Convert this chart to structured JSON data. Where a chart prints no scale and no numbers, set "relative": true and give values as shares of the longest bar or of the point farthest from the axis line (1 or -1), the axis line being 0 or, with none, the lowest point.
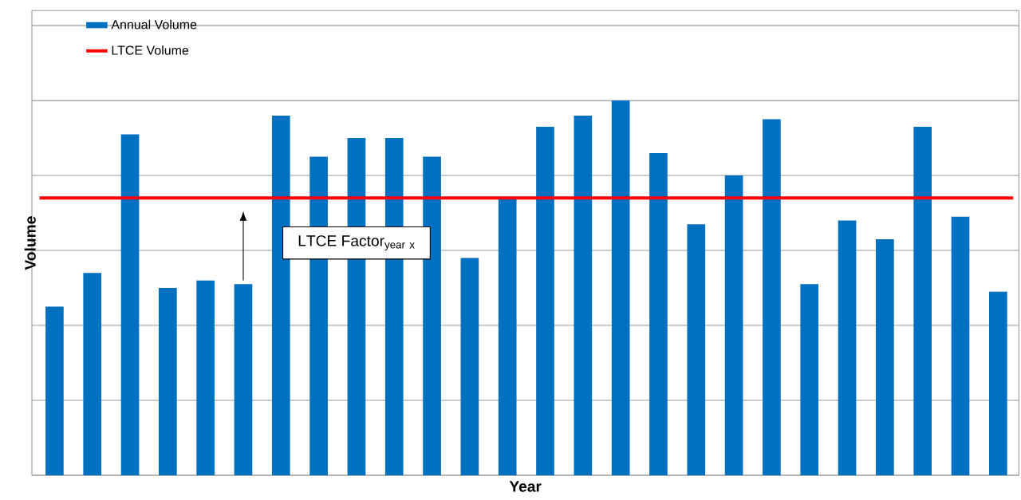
{
  "chart_data": {
    "type": "bar",
    "relative": true,
    "xlabel": "Year",
    "ylabel": "Volume",
    "grid": "y",
    "legend": "top left",
    "categories": [
      null,
      null,
      null,
      null,
      null,
      null,
      null,
      null,
      null,
      null,
      null,
      null,
      null,
      null,
      null,
      null,
      null,
      null,
      null,
      null,
      null,
      null,
      null,
      null,
      null,
      null
    ],
    "series": [
      {
        "name": "Annual Volume",
        "color": "#0070c0",
        "values": [
          0.45,
          0.54,
          0.91,
          0.5,
          0.52,
          0.51,
          0.96,
          0.85,
          0.9,
          0.9,
          0.85,
          0.58,
          0.74,
          0.93,
          0.96,
          1,
          0.86,
          0.67,
          0.8,
          0.95,
          0.51,
          0.68,
          0.63,
          0.93,
          0.69,
          0.49
        ]
      }
    ],
    "ref_lines": [
      {
        "axis": "y",
        "value": 0.74,
        "label": "LTCE Volume",
        "color": "#ff0000"
      }
    ],
    "annotations": [
      "\\mathrm{LTCE\\ Factor}_{\\mathrm{year\\ x}}"
    ]
  }
}
